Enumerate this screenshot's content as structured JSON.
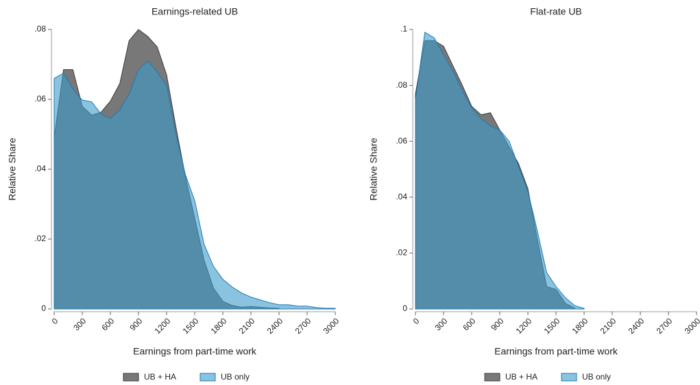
{
  "chart_data": [
    {
      "type": "area",
      "title": "Earnings-related UB",
      "x_label": "Earnings from part-time work",
      "y_label": "Relative Share",
      "xlim": [
        0,
        3000
      ],
      "xticks": [
        0,
        300,
        600,
        900,
        1200,
        1500,
        1800,
        2100,
        2400,
        2700,
        3000
      ],
      "ylim": [
        0,
        0.08
      ],
      "yticks": [
        0,
        {
          "value": 0.02,
          "label": ".02"
        },
        {
          "value": 0.04,
          "label": ".04"
        },
        {
          "value": 0.06,
          "label": ".06"
        },
        {
          "value": 0.08,
          "label": ".08"
        }
      ],
      "series": [
        {
          "name": "UB + HA",
          "color": "#606060",
          "x": [
            0,
            100,
            200,
            300,
            400,
            500,
            600,
            700,
            800,
            900,
            1000,
            1100,
            1200,
            1300,
            1400,
            1500,
            1600,
            1700,
            1800,
            1900,
            2000,
            2100,
            2200,
            2300,
            2400
          ],
          "values": [
            0.049,
            0.0685,
            0.0685,
            0.058,
            0.0555,
            0.0563,
            0.0595,
            0.0645,
            0.0768,
            0.08,
            0.078,
            0.075,
            0.067,
            0.052,
            0.038,
            0.026,
            0.014,
            0.006,
            0.0022,
            0.001,
            0.0005,
            0.0007,
            0.0005,
            0.0003,
            0.0002
          ]
        },
        {
          "name": "UB only",
          "color": "#3a9bcc",
          "x": [
            0,
            100,
            200,
            300,
            400,
            500,
            600,
            700,
            800,
            900,
            1000,
            1100,
            1200,
            1300,
            1400,
            1500,
            1600,
            1700,
            1800,
            1900,
            2000,
            2100,
            2200,
            2300,
            2400,
            2500,
            2600,
            2700,
            2800,
            2900,
            3000
          ],
          "values": [
            0.066,
            0.0675,
            0.063,
            0.0598,
            0.0593,
            0.0558,
            0.0545,
            0.057,
            0.0615,
            0.0685,
            0.071,
            0.0678,
            0.064,
            0.05,
            0.0385,
            0.031,
            0.0185,
            0.0122,
            0.0085,
            0.0063,
            0.0046,
            0.0034,
            0.0026,
            0.0018,
            0.0012,
            0.0012,
            0.0008,
            0.0008,
            0.0004,
            0.0002,
            0.0002
          ]
        }
      ]
    },
    {
      "type": "area",
      "title": "Flat-rate UB",
      "x_label": "Earnings from part-time work",
      "y_label": "Relative Share",
      "xlim": [
        0,
        3000
      ],
      "xticks": [
        0,
        300,
        600,
        900,
        1200,
        1500,
        1800,
        2100,
        2400,
        2700,
        3000
      ],
      "ylim": [
        0,
        0.1
      ],
      "yticks": [
        0,
        {
          "value": 0.02,
          "label": ".02"
        },
        {
          "value": 0.04,
          "label": ".04"
        },
        {
          "value": 0.06,
          "label": ".06"
        },
        {
          "value": 0.08,
          "label": ".08"
        },
        {
          "value": 0.1,
          "label": ".1"
        }
      ],
      "series": [
        {
          "name": "UB + HA",
          "color": "#606060",
          "x": [
            0,
            100,
            200,
            300,
            400,
            500,
            600,
            700,
            800,
            900,
            1000,
            1100,
            1200,
            1300,
            1400,
            1500,
            1600,
            1700
          ],
          "values": [
            0.077,
            0.096,
            0.096,
            0.094,
            0.087,
            0.08,
            0.0725,
            0.0695,
            0.0702,
            0.064,
            0.058,
            0.052,
            0.043,
            0.025,
            0.008,
            0.007,
            0.002,
            0.0003
          ]
        },
        {
          "name": "UB only",
          "color": "#3a9bcc",
          "x": [
            0,
            100,
            200,
            300,
            400,
            500,
            600,
            700,
            800,
            900,
            1000,
            1100,
            1200,
            1300,
            1400,
            1500,
            1600,
            1700,
            1800
          ],
          "values": [
            0.075,
            0.099,
            0.097,
            0.091,
            0.085,
            0.078,
            0.072,
            0.068,
            0.0655,
            0.064,
            0.06,
            0.051,
            0.042,
            0.028,
            0.013,
            0.008,
            0.004,
            0.0012,
            0.0002
          ]
        }
      ]
    }
  ]
}
